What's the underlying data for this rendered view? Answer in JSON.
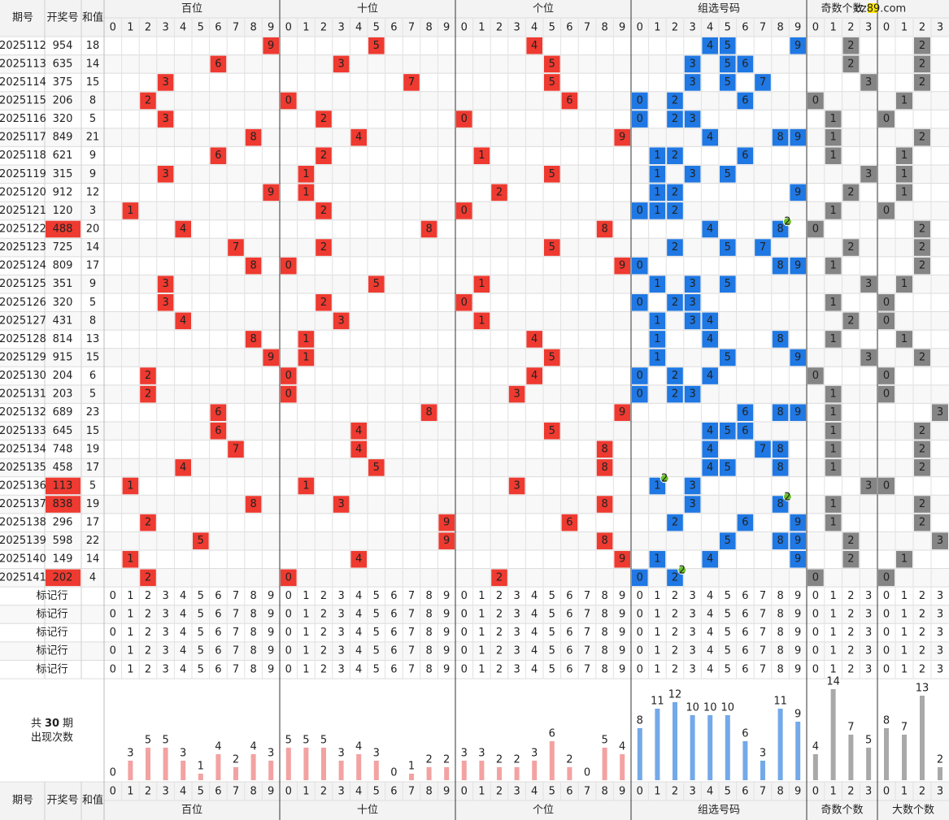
{
  "header": {
    "issue": "期号",
    "number": "开奖号",
    "sum": "和值",
    "groups": [
      "百位",
      "十位",
      "个位",
      "组选号码"
    ],
    "odd": "奇数个数",
    "logo": "cz89.com"
  },
  "footer": {
    "issue": "期号",
    "number": "开奖号",
    "sum": "和值",
    "groups": [
      "百位",
      "十位",
      "个位",
      "组选号码"
    ],
    "odd": "奇数个数",
    "big": "大数个数"
  },
  "digit_labels": [
    0,
    1,
    2,
    3,
    4,
    5,
    6,
    7,
    8,
    9
  ],
  "count_labels": [
    0,
    1,
    2,
    3
  ],
  "rows": [
    {
      "issue": "2025112",
      "number": "954",
      "sum": 18,
      "digits": [
        9,
        5,
        4
      ],
      "group": [
        4,
        5,
        9
      ],
      "odd": 2,
      "big": 2
    },
    {
      "issue": "2025113",
      "number": "635",
      "sum": 14,
      "digits": [
        6,
        3,
        5
      ],
      "group": [
        3,
        5,
        6
      ],
      "odd": 2,
      "big": 2
    },
    {
      "issue": "2025114",
      "number": "375",
      "sum": 15,
      "digits": [
        3,
        7,
        5
      ],
      "group": [
        3,
        5,
        7
      ],
      "odd": 3,
      "big": 2
    },
    {
      "issue": "2025115",
      "number": "206",
      "sum": 8,
      "digits": [
        2,
        0,
        6
      ],
      "group": [
        0,
        2,
        6
      ],
      "odd": 0,
      "big": 1
    },
    {
      "issue": "2025116",
      "number": "320",
      "sum": 5,
      "digits": [
        3,
        2,
        0
      ],
      "group": [
        0,
        2,
        3
      ],
      "odd": 1,
      "big": 0
    },
    {
      "issue": "2025117",
      "number": "849",
      "sum": 21,
      "digits": [
        8,
        4,
        9
      ],
      "group": [
        4,
        8,
        9
      ],
      "odd": 1,
      "big": 2
    },
    {
      "issue": "2025118",
      "number": "621",
      "sum": 9,
      "digits": [
        6,
        2,
        1
      ],
      "group": [
        1,
        2,
        6
      ],
      "odd": 1,
      "big": 1
    },
    {
      "issue": "2025119",
      "number": "315",
      "sum": 9,
      "digits": [
        3,
        1,
        5
      ],
      "group": [
        1,
        3,
        5
      ],
      "odd": 3,
      "big": 1
    },
    {
      "issue": "2025120",
      "number": "912",
      "sum": 12,
      "digits": [
        9,
        1,
        2
      ],
      "group": [
        1,
        2,
        9
      ],
      "odd": 2,
      "big": 1
    },
    {
      "issue": "2025121",
      "number": "120",
      "sum": 3,
      "digits": [
        1,
        2,
        0
      ],
      "group": [
        0,
        1,
        2
      ],
      "odd": 1,
      "big": 0
    },
    {
      "issue": "2025122",
      "number": "488",
      "sum": 20,
      "digits": [
        4,
        8,
        8
      ],
      "group": [
        4,
        8
      ],
      "repeat": {
        "digit": 8,
        "count": 2
      },
      "odd": 0,
      "big": 2
    },
    {
      "issue": "2025123",
      "number": "725",
      "sum": 14,
      "digits": [
        7,
        2,
        5
      ],
      "group": [
        2,
        5,
        7
      ],
      "odd": 2,
      "big": 2
    },
    {
      "issue": "2025124",
      "number": "809",
      "sum": 17,
      "digits": [
        8,
        0,
        9
      ],
      "group": [
        0,
        8,
        9
      ],
      "odd": 1,
      "big": 2
    },
    {
      "issue": "2025125",
      "number": "351",
      "sum": 9,
      "digits": [
        3,
        5,
        1
      ],
      "group": [
        1,
        3,
        5
      ],
      "odd": 3,
      "big": 1
    },
    {
      "issue": "2025126",
      "number": "320",
      "sum": 5,
      "digits": [
        3,
        2,
        0
      ],
      "group": [
        0,
        2,
        3
      ],
      "odd": 1,
      "big": 0
    },
    {
      "issue": "2025127",
      "number": "431",
      "sum": 8,
      "digits": [
        4,
        3,
        1
      ],
      "group": [
        1,
        3,
        4
      ],
      "odd": 2,
      "big": 0
    },
    {
      "issue": "2025128",
      "number": "814",
      "sum": 13,
      "digits": [
        8,
        1,
        4
      ],
      "group": [
        1,
        4,
        8
      ],
      "odd": 1,
      "big": 1
    },
    {
      "issue": "2025129",
      "number": "915",
      "sum": 15,
      "digits": [
        9,
        1,
        5
      ],
      "group": [
        1,
        5,
        9
      ],
      "odd": 3,
      "big": 2
    },
    {
      "issue": "2025130",
      "number": "204",
      "sum": 6,
      "digits": [
        2,
        0,
        4
      ],
      "group": [
        0,
        2,
        4
      ],
      "odd": 0,
      "big": 0
    },
    {
      "issue": "2025131",
      "number": "203",
      "sum": 5,
      "digits": [
        2,
        0,
        3
      ],
      "group": [
        0,
        2,
        3
      ],
      "odd": 1,
      "big": 0
    },
    {
      "issue": "2025132",
      "number": "689",
      "sum": 23,
      "digits": [
        6,
        8,
        9
      ],
      "group": [
        6,
        8,
        9
      ],
      "odd": 1,
      "big": 3
    },
    {
      "issue": "2025133",
      "number": "645",
      "sum": 15,
      "digits": [
        6,
        4,
        5
      ],
      "group": [
        4,
        5,
        6
      ],
      "odd": 1,
      "big": 2
    },
    {
      "issue": "2025134",
      "number": "748",
      "sum": 19,
      "digits": [
        7,
        4,
        8
      ],
      "group": [
        4,
        7,
        8
      ],
      "odd": 1,
      "big": 2
    },
    {
      "issue": "2025135",
      "number": "458",
      "sum": 17,
      "digits": [
        4,
        5,
        8
      ],
      "group": [
        4,
        5,
        8
      ],
      "odd": 1,
      "big": 2
    },
    {
      "issue": "2025136",
      "number": "113",
      "sum": 5,
      "digits": [
        1,
        1,
        3
      ],
      "group": [
        1,
        3
      ],
      "repeat": {
        "digit": 1,
        "count": 2
      },
      "odd": 3,
      "big": 0
    },
    {
      "issue": "2025137",
      "number": "838",
      "sum": 19,
      "digits": [
        8,
        3,
        8
      ],
      "group": [
        3,
        8
      ],
      "repeat": {
        "digit": 8,
        "count": 2
      },
      "odd": 1,
      "big": 2
    },
    {
      "issue": "2025138",
      "number": "296",
      "sum": 17,
      "digits": [
        2,
        9,
        6
      ],
      "group": [
        2,
        6,
        9
      ],
      "odd": 1,
      "big": 2
    },
    {
      "issue": "2025139",
      "number": "598",
      "sum": 22,
      "digits": [
        5,
        9,
        8
      ],
      "group": [
        5,
        8,
        9
      ],
      "odd": 2,
      "big": 3
    },
    {
      "issue": "2025140",
      "number": "149",
      "sum": 14,
      "digits": [
        1,
        4,
        9
      ],
      "group": [
        1,
        4,
        9
      ],
      "odd": 2,
      "big": 1
    },
    {
      "issue": "2025141",
      "number": "202",
      "sum": 4,
      "digits": [
        2,
        0,
        2
      ],
      "group": [
        0,
        2
      ],
      "repeat": {
        "digit": 2,
        "count": 2
      },
      "odd": 0,
      "big": 0
    }
  ],
  "marker_rows": [
    "标记行",
    "标记行",
    "标记行",
    "标记行",
    "标记行"
  ],
  "stats": {
    "prefix": "共",
    "periods": 30,
    "suffix": "期",
    "caption": "出现次数",
    "positions": [
      [
        0,
        3,
        5,
        5,
        3,
        1,
        4,
        2,
        4,
        3
      ],
      [
        5,
        5,
        5,
        3,
        4,
        3,
        0,
        1,
        2,
        2
      ],
      [
        3,
        3,
        2,
        2,
        3,
        6,
        2,
        0,
        5,
        4
      ]
    ],
    "group": [
      8,
      11,
      12,
      10,
      10,
      10,
      6,
      3,
      11,
      9
    ],
    "odd": [
      4,
      14,
      7,
      5
    ],
    "big": [
      8,
      7,
      13,
      2
    ]
  },
  "colors": {
    "position": "#ee3a30",
    "group": "#1f78e3",
    "count": "#858585",
    "position_bar": "#f3a2a2",
    "group_bar": "#74a9e9",
    "count_bar": "#a9a9a9",
    "position_label": "#ee3a30",
    "group_label": "#1f78e3",
    "count_label": "#777777",
    "badge": "#6cbf2a",
    "hot": "#ee3a30"
  }
}
